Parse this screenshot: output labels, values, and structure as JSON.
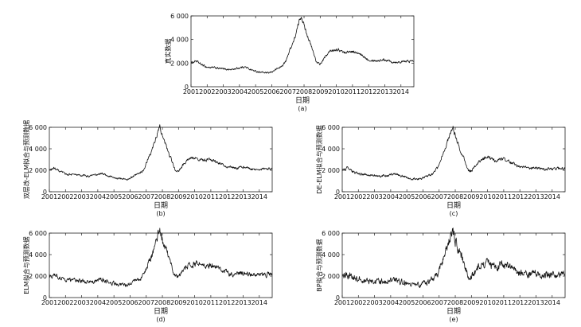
{
  "chart_data": [
    {
      "type": "line",
      "panel": "a",
      "caption": "(a)",
      "xlabel": "日期",
      "ylabel": "真实数据",
      "xlim": [
        2001,
        2014.8
      ],
      "ylim": [
        0,
        6000
      ],
      "xticks": [
        "2001",
        "2002",
        "2003",
        "2004",
        "2005",
        "2006",
        "2007",
        "2008",
        "2009",
        "2010",
        "2011",
        "2012",
        "2013",
        "2014"
      ],
      "yticks": [
        "0",
        "2 000",
        "4 000",
        "6 000"
      ],
      "grid": false,
      "series": [
        {
          "x": [
            2001,
            2001.3,
            2001.6,
            2002,
            2002.5,
            2003,
            2003.5,
            2004,
            2004.3,
            2004.8,
            2005,
            2005.5,
            2005.8,
            2006,
            2006.3,
            2006.6,
            2006.9,
            2007,
            2007.2,
            2007.4,
            2007.6,
            2007.75,
            2007.85,
            2008,
            2008.3,
            2008.6,
            2008.8,
            2009,
            2009.3,
            2009.6,
            2010,
            2010.5,
            2011,
            2011.5,
            2012,
            2012.5,
            2013,
            2013.5,
            2014,
            2014.8
          ],
          "y": [
            2000,
            2200,
            1900,
            1650,
            1600,
            1500,
            1450,
            1600,
            1700,
            1400,
            1300,
            1200,
            1150,
            1250,
            1500,
            1700,
            2200,
            2700,
            3400,
            4000,
            5000,
            5800,
            6000,
            5200,
            4000,
            2800,
            2000,
            1900,
            2500,
            3000,
            3200,
            2900,
            3000,
            2700,
            2300,
            2200,
            2300,
            2100,
            2100,
            2200
          ],
          "noise": 60
        }
      ]
    },
    {
      "type": "line",
      "panel": "b",
      "caption": "(b)",
      "xlabel": "日期",
      "ylabel": "双层改-ELM拟合与预测数据",
      "xlim": [
        2001,
        2014.8
      ],
      "ylim": [
        0,
        6000
      ],
      "xticks": [
        "2001",
        "2002",
        "2003",
        "2004",
        "2005",
        "2006",
        "2007",
        "2008",
        "2009",
        "2010",
        "2011",
        "2012",
        "2013",
        "2014"
      ],
      "yticks": [
        "0",
        "2 000",
        "4 000",
        "6 000"
      ],
      "grid": false,
      "series": [
        {
          "x": [
            2001,
            2001.3,
            2001.6,
            2002,
            2002.5,
            2003,
            2003.5,
            2004,
            2004.3,
            2004.8,
            2005,
            2005.5,
            2005.8,
            2006,
            2006.3,
            2006.6,
            2006.9,
            2007,
            2007.2,
            2007.4,
            2007.6,
            2007.75,
            2007.85,
            2008,
            2008.3,
            2008.6,
            2008.8,
            2009,
            2009.3,
            2009.6,
            2010,
            2010.5,
            2011,
            2011.5,
            2012,
            2012.5,
            2013,
            2013.5,
            2014,
            2014.8
          ],
          "y": [
            2000,
            2200,
            1900,
            1650,
            1600,
            1500,
            1450,
            1600,
            1700,
            1400,
            1300,
            1200,
            1150,
            1250,
            1500,
            1700,
            2200,
            2700,
            3400,
            4000,
            5000,
            5800,
            6000,
            5200,
            4000,
            2800,
            2000,
            1900,
            2500,
            3000,
            3200,
            2900,
            3000,
            2700,
            2300,
            2200,
            2300,
            2100,
            2100,
            2200
          ],
          "noise": 70
        }
      ]
    },
    {
      "type": "line",
      "panel": "c",
      "caption": "(c)",
      "xlabel": "日期",
      "ylabel": "DE-ELM拟合与预测数据",
      "xlim": [
        2001,
        2014.8
      ],
      "ylim": [
        0,
        6000
      ],
      "xticks": [
        "2001",
        "2002",
        "2003",
        "2004",
        "2005",
        "2006",
        "2007",
        "2008",
        "2009",
        "2010",
        "2011",
        "2012",
        "2013",
        "2014"
      ],
      "yticks": [
        "0",
        "2 000",
        "4 000",
        "6 000"
      ],
      "grid": false,
      "series": [
        {
          "x": [
            2001,
            2001.3,
            2001.6,
            2002,
            2002.5,
            2003,
            2003.5,
            2004,
            2004.3,
            2004.8,
            2005,
            2005.5,
            2005.8,
            2006,
            2006.3,
            2006.6,
            2006.9,
            2007,
            2007.2,
            2007.4,
            2007.6,
            2007.75,
            2007.85,
            2008,
            2008.3,
            2008.6,
            2008.8,
            2009,
            2009.3,
            2009.6,
            2010,
            2010.5,
            2011,
            2011.5,
            2012,
            2012.5,
            2013,
            2013.5,
            2014,
            2014.8
          ],
          "y": [
            2000,
            2200,
            1900,
            1650,
            1600,
            1500,
            1450,
            1600,
            1700,
            1400,
            1300,
            1200,
            1150,
            1250,
            1500,
            1700,
            2200,
            2700,
            3400,
            4000,
            5000,
            5800,
            6000,
            5200,
            4000,
            2800,
            2000,
            1900,
            2500,
            3000,
            3200,
            2900,
            3000,
            2700,
            2300,
            2200,
            2300,
            2100,
            2100,
            2200
          ],
          "noise": 80
        }
      ]
    },
    {
      "type": "line",
      "panel": "d",
      "caption": "(d)",
      "xlabel": "日期",
      "ylabel": "ELM拟合与预测数据",
      "xlim": [
        2001,
        2014.8
      ],
      "ylim": [
        0,
        6000
      ],
      "xticks": [
        "2001",
        "2002",
        "2003",
        "2004",
        "2005",
        "2006",
        "2007",
        "2008",
        "2009",
        "2010",
        "2011",
        "2012",
        "2013",
        "2014"
      ],
      "yticks": [
        "0",
        "2 000",
        "4 000",
        "6 000"
      ],
      "grid": false,
      "series": [
        {
          "x": [
            2001,
            2001.3,
            2001.6,
            2002,
            2002.5,
            2003,
            2003.5,
            2004,
            2004.3,
            2004.8,
            2005,
            2005.5,
            2005.8,
            2006,
            2006.3,
            2006.6,
            2006.9,
            2007,
            2007.2,
            2007.4,
            2007.6,
            2007.75,
            2007.85,
            2008,
            2008.3,
            2008.6,
            2008.8,
            2009,
            2009.3,
            2009.6,
            2010,
            2010.5,
            2011,
            2011.5,
            2012,
            2012.5,
            2013,
            2013.5,
            2014,
            2014.8
          ],
          "y": [
            2000,
            2200,
            1900,
            1650,
            1600,
            1500,
            1450,
            1600,
            1700,
            1400,
            1300,
            1200,
            1150,
            1250,
            1500,
            1700,
            2200,
            2700,
            3400,
            4000,
            5000,
            5900,
            6300,
            5400,
            4100,
            2800,
            2000,
            1900,
            2500,
            3000,
            3200,
            2900,
            3000,
            2700,
            2300,
            2200,
            2300,
            2100,
            2100,
            2200
          ],
          "noise": 140
        }
      ]
    },
    {
      "type": "line",
      "panel": "e",
      "caption": "(e)",
      "xlabel": "日期",
      "ylabel": "BP拟合与预测数据",
      "xlim": [
        2001,
        2014.8
      ],
      "ylim": [
        0,
        6000
      ],
      "xticks": [
        "2001",
        "2002",
        "2003",
        "2004",
        "2005",
        "2006",
        "2007",
        "2008",
        "2009",
        "2010",
        "2011",
        "2012",
        "2013",
        "2014"
      ],
      "yticks": [
        "0",
        "2 000",
        "4 000",
        "6 000"
      ],
      "grid": false,
      "series": [
        {
          "x": [
            2001,
            2001.3,
            2001.6,
            2002,
            2002.5,
            2003,
            2003.5,
            2004,
            2004.3,
            2004.8,
            2005,
            2005.5,
            2005.8,
            2006,
            2006.3,
            2006.6,
            2006.9,
            2007,
            2007.2,
            2007.4,
            2007.6,
            2007.75,
            2007.85,
            2008,
            2008.3,
            2008.6,
            2008.8,
            2009,
            2009.3,
            2009.6,
            2010,
            2010.5,
            2011,
            2011.5,
            2012,
            2012.5,
            2013,
            2013.5,
            2014,
            2014.8
          ],
          "y": [
            2000,
            2200,
            1900,
            1650,
            1600,
            1500,
            1450,
            1600,
            1700,
            1400,
            1300,
            1200,
            1150,
            1250,
            1500,
            1700,
            2200,
            2700,
            3400,
            4000,
            5000,
            5900,
            6400,
            5400,
            4100,
            2800,
            2000,
            1900,
            2500,
            3000,
            3200,
            2900,
            3000,
            2700,
            2300,
            2200,
            2300,
            2100,
            2100,
            2200
          ],
          "noise": 200
        }
      ]
    }
  ]
}
